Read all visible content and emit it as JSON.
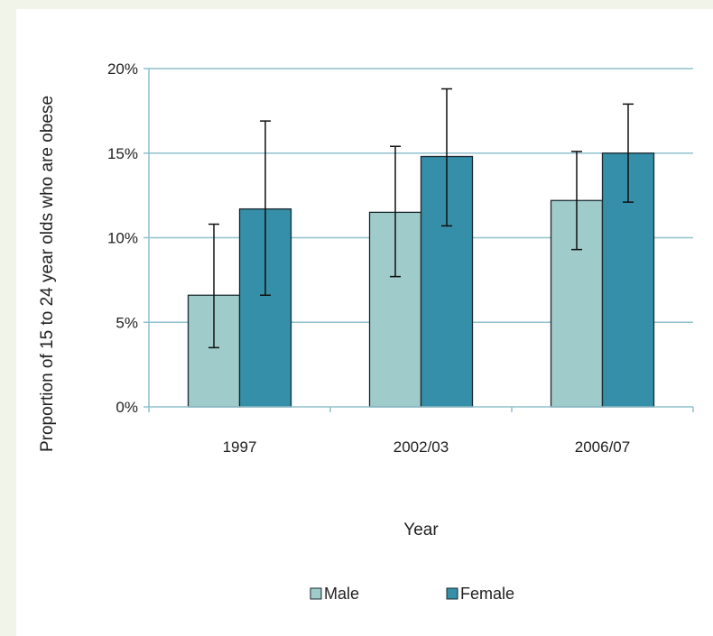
{
  "chart_data": {
    "type": "bar",
    "title": "",
    "xlabel": "Year",
    "ylabel": "Proportion of 15 to 24 year olds who are obese",
    "categories": [
      "1997",
      "2002/03",
      "2006/07"
    ],
    "ylim": [
      0,
      20
    ],
    "yticks": [
      0,
      5,
      10,
      15,
      20
    ],
    "ytick_labels": [
      "0%",
      "5%",
      "10%",
      "15%",
      "20%"
    ],
    "grid": true,
    "legend_position": "bottom",
    "series": [
      {
        "name": "Male",
        "color": "#9fcbca",
        "values": [
          6.6,
          11.5,
          12.2
        ],
        "error_low": [
          3.5,
          7.7,
          9.3
        ],
        "error_high": [
          10.8,
          15.4,
          15.1
        ]
      },
      {
        "name": "Female",
        "color": "#358fa8",
        "values": [
          11.7,
          14.8,
          15.0
        ],
        "error_low": [
          6.6,
          10.7,
          12.1
        ],
        "error_high": [
          16.9,
          18.8,
          17.9
        ]
      }
    ]
  }
}
